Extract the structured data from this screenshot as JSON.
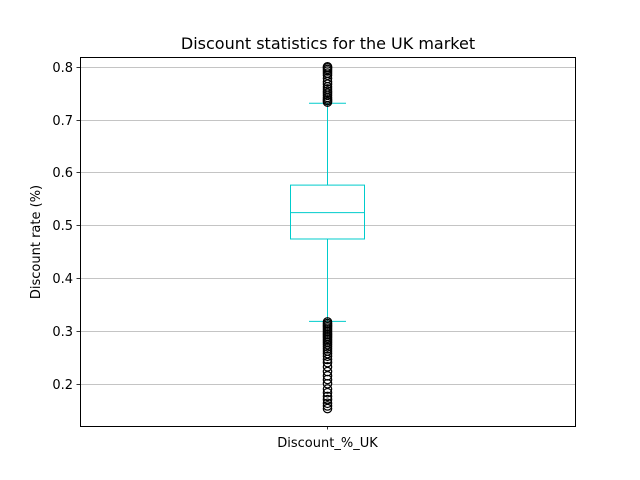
{
  "chart_data": {
    "type": "box",
    "title": "Discount statistics for the UK market",
    "xlabel": "",
    "ylabel": "Discount rate (%)",
    "categories": [
      "Discount_%_UK"
    ],
    "ylim": [
      0.12,
      0.8185
    ],
    "yticks": [
      0.2,
      0.3,
      0.4,
      0.5,
      0.6,
      0.7,
      0.8
    ],
    "ytick_labels": [
      "0.2",
      "0.3",
      "0.4",
      "0.5",
      "0.6",
      "0.7",
      "0.8"
    ],
    "grid": "y",
    "legend": "none",
    "color": "#00cccc",
    "flier_color": "#000000",
    "boxes": [
      {
        "name": "Discount_%_UK",
        "whisker_low": 0.318,
        "q1": 0.474,
        "median": 0.524,
        "q3": 0.576,
        "whisker_high": 0.731,
        "fliers": [
          0.153,
          0.158,
          0.163,
          0.17,
          0.176,
          0.183,
          0.19,
          0.2,
          0.208,
          0.215,
          0.223,
          0.232,
          0.24,
          0.246,
          0.252,
          0.257,
          0.262,
          0.266,
          0.27,
          0.274,
          0.278,
          0.281,
          0.284,
          0.287,
          0.29,
          0.293,
          0.296,
          0.299,
          0.302,
          0.305,
          0.308,
          0.311,
          0.314,
          0.317,
          0.733,
          0.736,
          0.739,
          0.742,
          0.746,
          0.75,
          0.754,
          0.758,
          0.762,
          0.767,
          0.772,
          0.778,
          0.784,
          0.788,
          0.792,
          0.795,
          0.798,
          0.8
        ]
      }
    ]
  }
}
